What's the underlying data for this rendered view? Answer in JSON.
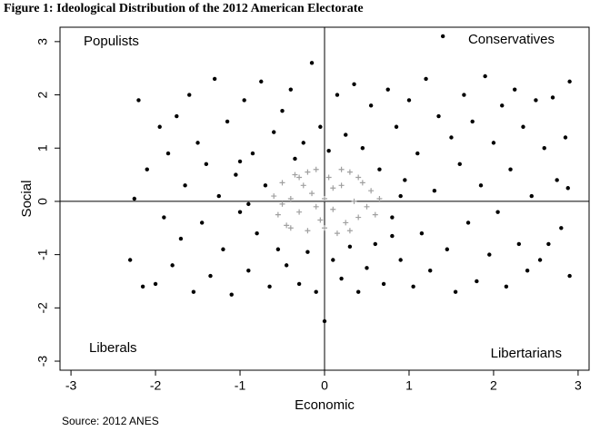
{
  "chart_data": {
    "type": "scatter",
    "title": "Figure 1: Ideological Distribution of the 2012 American Electorate",
    "x_label": "Economic",
    "y_label": "Social",
    "annotations": [
      "Populists",
      "Conservatives",
      "Liberals",
      "Libertarians"
    ],
    "source": "Source: 2012 ANES",
    "xlim": [
      -3.13,
      3.13
    ],
    "ylim": [
      -3.17,
      3.27
    ],
    "xticks": [
      -3,
      -2,
      -1,
      0,
      1,
      2,
      3
    ],
    "yticks": [
      -3,
      -2,
      -1,
      0,
      1,
      2,
      3
    ],
    "zero_lines": true,
    "series": [
      {
        "color": "#000000",
        "marker": "circle",
        "x": [
          -2.25,
          -2.2,
          -2.15,
          -2.1,
          -2.0,
          -1.95,
          -1.9,
          -1.85,
          -1.8,
          -1.75,
          -1.7,
          -1.65,
          -1.6,
          -1.55,
          -1.5,
          -1.45,
          -1.4,
          -1.35,
          -1.3,
          -1.25,
          -1.2,
          -1.15,
          -1.1,
          -1.05,
          -1.0,
          -0.95,
          -0.9,
          -0.85,
          -0.8,
          -0.75,
          -0.7,
          -0.65,
          -0.6,
          -0.55,
          -0.5,
          -0.45,
          -0.4,
          -0.35,
          -0.3,
          -0.25,
          -0.2,
          -0.15,
          -0.1,
          -0.05,
          0,
          0.05,
          0.1,
          0.15,
          0.2,
          0.25,
          0.3,
          0.35,
          0.4,
          0.45,
          0.5,
          0.55,
          0.6,
          0.65,
          0.7,
          0.75,
          0.8,
          0.85,
          0.9,
          0.95,
          1.0,
          1.05,
          1.1,
          1.15,
          1.2,
          1.25,
          1.3,
          1.35,
          1.4,
          1.45,
          1.5,
          1.55,
          1.6,
          1.65,
          1.7,
          1.75,
          1.8,
          1.85,
          1.9,
          1.95,
          2.0,
          2.05,
          2.1,
          2.15,
          2.2,
          2.25,
          2.3,
          2.35,
          2.4,
          2.45,
          2.5,
          2.55,
          2.6,
          2.65,
          2.7,
          2.75,
          2.8,
          2.85,
          2.9,
          2.9,
          2.88,
          -2.3,
          -1.0,
          0.9,
          -0.9,
          0.8
        ],
        "values": [
          0.05,
          1.9,
          -1.6,
          0.6,
          -1.55,
          1.4,
          -0.3,
          0.9,
          -1.2,
          1.6,
          -0.7,
          0.3,
          2.0,
          -1.7,
          1.1,
          -0.4,
          0.7,
          -1.4,
          2.3,
          0.1,
          -0.9,
          1.5,
          -1.75,
          0.5,
          -0.2,
          1.9,
          -1.3,
          0.9,
          -0.6,
          2.25,
          0.3,
          -1.6,
          1.3,
          -0.9,
          1.7,
          -1.2,
          2.1,
          0.8,
          -1.55,
          1.1,
          -0.95,
          2.6,
          -1.7,
          1.4,
          -2.25,
          0.95,
          -1.1,
          2.0,
          -1.45,
          1.25,
          -0.85,
          2.2,
          -1.7,
          1.0,
          -1.25,
          1.8,
          -0.8,
          0.6,
          -1.55,
          2.1,
          -0.3,
          1.4,
          -1.1,
          0.4,
          1.9,
          -1.6,
          0.9,
          -0.6,
          2.3,
          -1.3,
          0.2,
          1.6,
          3.1,
          -0.9,
          1.2,
          -1.7,
          0.7,
          2.0,
          -0.4,
          1.5,
          -1.5,
          0.3,
          2.35,
          -1.0,
          1.1,
          -0.2,
          1.8,
          -1.6,
          0.6,
          2.1,
          -0.8,
          1.4,
          -1.3,
          0.1,
          1.9,
          -1.1,
          1.0,
          -0.8,
          1.95,
          0.4,
          -0.5,
          1.2,
          2.25,
          -1.4,
          0.25,
          -1.1,
          0.75,
          0.1,
          -0.05,
          -0.65
        ]
      },
      {
        "color": "#a0a0a0",
        "marker": "plus",
        "x": [
          -0.6,
          -0.55,
          -0.5,
          -0.45,
          -0.4,
          -0.35,
          -0.3,
          -0.25,
          -0.2,
          -0.15,
          -0.1,
          -0.05,
          0,
          0.05,
          0.1,
          0.15,
          0.2,
          0.25,
          0.3,
          0.35,
          0.4,
          0.45,
          0.5,
          0.55,
          0.6,
          0.65,
          -0.5,
          -0.3,
          0.0,
          0.2,
          -0.1,
          0.4,
          -0.4,
          0.3,
          -0.2,
          0.1
        ],
        "values": [
          0.1,
          -0.25,
          0.35,
          -0.45,
          0.05,
          0.5,
          -0.2,
          0.3,
          -0.55,
          0.15,
          0.6,
          -0.35,
          0.05,
          0.45,
          -0.15,
          -0.6,
          0.3,
          -0.4,
          0.55,
          0.0,
          -0.3,
          0.35,
          -0.1,
          0.2,
          -0.25,
          0.05,
          -0.05,
          0.45,
          -0.5,
          0.6,
          -0.1,
          0.45,
          -0.5,
          -0.55,
          0.55,
          0.25
        ]
      }
    ]
  }
}
